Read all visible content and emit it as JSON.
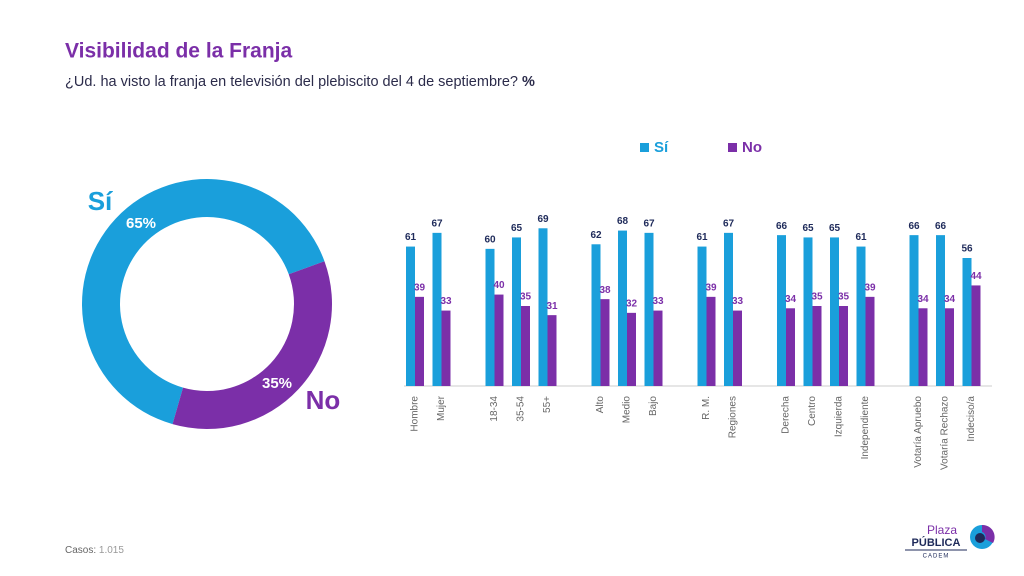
{
  "header": {
    "title": "Visibilidad de la Franja",
    "subtitle": "¿Ud. ha visto la franja en televisión del plebiscito del 4 de septiembre?",
    "subtitle_unit": "%"
  },
  "footer": {
    "label": "Casos:",
    "value": "1.015"
  },
  "logo": {
    "line1": "Plaza",
    "line2": "PÚBLICA",
    "line3": "CADEM"
  },
  "chart_data": [
    {
      "type": "donut",
      "categories": [
        "Sí",
        "No"
      ],
      "values": [
        65,
        35
      ],
      "value_labels": [
        "65%",
        "35%"
      ],
      "colors": [
        "#1a9fdb",
        "#7b2fa8"
      ]
    },
    {
      "type": "bar",
      "categories": [
        "Hombre",
        "Mujer",
        null,
        "18-34",
        "35-54",
        "55+",
        null,
        "Alto",
        "Medio",
        "Bajo",
        null,
        "R. M.",
        "Regiones",
        null,
        "Derecha",
        "Centro",
        "Izquierda",
        "Independiente",
        null,
        "Votaría Apruebo",
        "Votaría Rechazo",
        "Indeciso/a"
      ],
      "series": [
        {
          "name": "Sí",
          "color": "#1a9fdb",
          "values": [
            61,
            67,
            null,
            60,
            65,
            69,
            null,
            62,
            68,
            67,
            null,
            61,
            67,
            null,
            66,
            65,
            65,
            61,
            null,
            66,
            66,
            56
          ]
        },
        {
          "name": "No",
          "color": "#7b2fa8",
          "values": [
            39,
            33,
            null,
            40,
            35,
            31,
            null,
            38,
            32,
            33,
            null,
            39,
            33,
            null,
            34,
            35,
            35,
            39,
            null,
            34,
            34,
            44
          ]
        }
      ],
      "ylim": [
        0,
        70
      ]
    }
  ]
}
